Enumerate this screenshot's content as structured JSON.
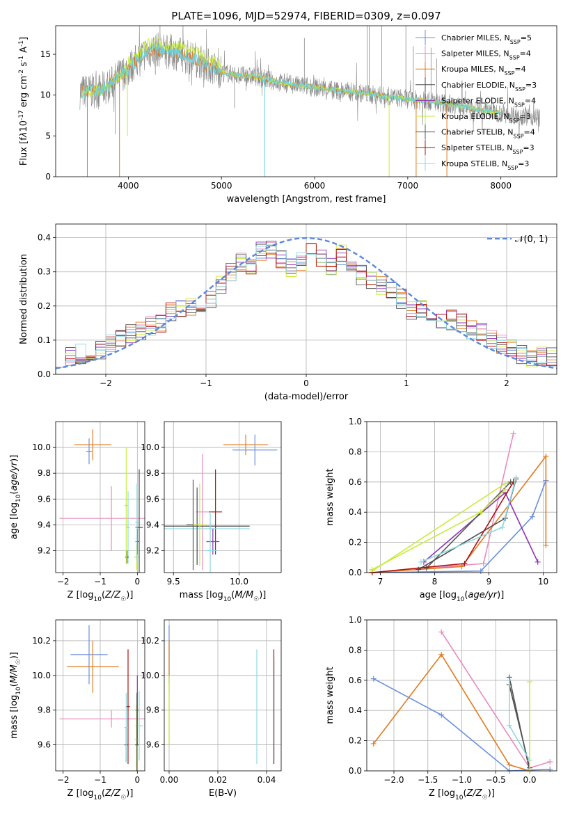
{
  "figure": {
    "title": "PLATE=1096, MJD=52974, FIBERID=0309, z=0.097"
  },
  "series_colors": [
    "#6a8fdb",
    "#e88bc0",
    "#e07b1f",
    "#4d4d4d",
    "#8e30b8",
    "#c8ec3a",
    "#555555",
    "#b01010",
    "#8ed8e0"
  ],
  "legend": [
    "Chabrier MILES, N<sub>SSP</sub>=5",
    "Salpeter MILES, N<sub>SSP</sub>=4",
    "Kroupa MILES, N<sub>SSP</sub>=4",
    "Chabrier ELODIE, N<sub>SSP</sub>=3",
    "Salpeter ELODIE, N<sub>SSP</sub>=4",
    "Kroupa ELODIE, N<sub>SSP</sub>=3",
    "Chabrier STELIB, N<sub>SSP</sub>=4",
    "Salpeter STELIB, N<sub>SSP</sub>=3",
    "Kroupa STELIB, N<sub>SSP</sub>=3"
  ],
  "chart_data": [
    {
      "id": "spectrum",
      "type": "line",
      "xlabel": "wavelength [Angstrom, rest frame]",
      "ylabel": "Flux [f<tspan font-style='italic'>λ</tspan>10<tspan baseline-shift='super' font-size='9'>-17</tspan> erg cm<tspan baseline-shift='super' font-size='9'>-2</tspan> s<tspan baseline-shift='super' font-size='9'>-1</tspan> A<tspan baseline-shift='super' font-size='9'>-1</tspan>]",
      "xlim": [
        3220,
        8600
      ],
      "ylim": [
        0,
        18.5
      ],
      "xticks": [
        4000,
        5000,
        6000,
        7000,
        8000
      ],
      "yticks": [
        0,
        5,
        10,
        15
      ],
      "continuum": [
        [
          3500,
          10.4
        ],
        [
          3600,
          10.5
        ],
        [
          3700,
          10.6
        ],
        [
          3800,
          11.2
        ],
        [
          3900,
          12.3
        ],
        [
          4000,
          13.2
        ],
        [
          4100,
          14.3
        ],
        [
          4200,
          15.3
        ],
        [
          4300,
          15.6
        ],
        [
          4400,
          15.4
        ],
        [
          4500,
          15.2
        ],
        [
          4600,
          14.8
        ],
        [
          4700,
          14.5
        ],
        [
          4800,
          14.0
        ],
        [
          4900,
          13.4
        ],
        [
          5000,
          12.8
        ],
        [
          5200,
          12.4
        ],
        [
          5400,
          12.2
        ],
        [
          5600,
          11.6
        ],
        [
          5800,
          11.2
        ],
        [
          6000,
          11.0
        ],
        [
          6200,
          10.6
        ],
        [
          6400,
          10.4
        ],
        [
          6600,
          10.1
        ],
        [
          6800,
          9.8
        ],
        [
          7000,
          9.5
        ],
        [
          7200,
          9.3
        ],
        [
          7400,
          9.0
        ],
        [
          7600,
          8.6
        ],
        [
          7800,
          8.1
        ],
        [
          8000,
          7.8
        ],
        [
          8200,
          7.5
        ],
        [
          8400,
          7.3
        ]
      ],
      "spikes": [
        [
          3860,
          5.2
        ],
        [
          4290,
          12.5
        ],
        [
          4340,
          18.5
        ],
        [
          5140,
          8.4
        ],
        [
          5890,
          17.0
        ],
        [
          6565,
          18.5
        ],
        [
          6587,
          18.5
        ],
        [
          6720,
          18.5
        ],
        [
          6980,
          18.5
        ],
        [
          7060,
          16.0
        ],
        [
          7250,
          15.8
        ],
        [
          7310,
          14.5
        ],
        [
          7620,
          10.5
        ],
        [
          7900,
          9.8
        ]
      ]
    },
    {
      "id": "residuals",
      "type": "histogram",
      "xlabel": "(data-model)/error",
      "ylabel": "Normed distribution",
      "xlim": [
        -2.5,
        2.5
      ],
      "ylim": [
        0,
        0.44
      ],
      "xticks": [
        -2,
        -1,
        0,
        1,
        2
      ],
      "yticks": [
        0.0,
        0.1,
        0.2,
        0.3,
        0.4
      ],
      "bin_width": 0.1,
      "base_profile": [
        0.05,
        0.055,
        0.06,
        0.065,
        0.07,
        0.09,
        0.1,
        0.12,
        0.13,
        0.14,
        0.15,
        0.18,
        0.19,
        0.2,
        0.2,
        0.22,
        0.26,
        0.3,
        0.33,
        0.32,
        0.36,
        0.37,
        0.34,
        0.31,
        0.33,
        0.37,
        0.34,
        0.32,
        0.35,
        0.31,
        0.29,
        0.27,
        0.26,
        0.25,
        0.22,
        0.19,
        0.19,
        0.17,
        0.16,
        0.16,
        0.15,
        0.13,
        0.12,
        0.1,
        0.09,
        0.08,
        0.06,
        0.05,
        0.05,
        0.05
      ],
      "gaussian_label": "𝒩(0, 1)"
    },
    {
      "id": "age_vs_Z",
      "type": "errorbar",
      "xlabel": "Z [log<tspan baseline-shift='sub' font-size='9'>10</tspan>(<tspan font-style='italic'>Z/Z</tspan><tspan baseline-shift='sub' font-size='9'>☉</tspan>)]",
      "ylabel": "age  [log<tspan baseline-shift='sub' font-size='9'>10</tspan>(<tspan font-style='italic'>age/yr</tspan>)]",
      "xlim": [
        -2.2,
        0.2
      ],
      "ylim": [
        9.03,
        10.2
      ],
      "xticks": [
        -2,
        -1,
        0
      ],
      "yticks": [
        9.2,
        9.4,
        9.6,
        9.8,
        10.0
      ],
      "points": [
        [
          -1.3,
          9.97,
          0.08,
          0.1,
          0
        ],
        [
          -1.2,
          10.02,
          0.5,
          0.12,
          2
        ],
        [
          -0.7,
          9.45,
          1.4,
          0.25,
          1
        ],
        [
          -0.25,
          9.38,
          0.05,
          0.28,
          8
        ],
        [
          0,
          9.27,
          0.05,
          0.1,
          4
        ],
        [
          -0.28,
          9.15,
          0.05,
          0.05,
          6
        ],
        [
          -0.02,
          9.15,
          0.08,
          0.1,
          5
        ],
        [
          0.05,
          9.38,
          0.1,
          0.45,
          3
        ],
        [
          -0.3,
          9.55,
          0.05,
          0.45,
          5
        ],
        [
          -0.01,
          9.42,
          0.05,
          0.3,
          8
        ]
      ]
    },
    {
      "id": "age_vs_mass",
      "type": "errorbar",
      "xlabel": "mass [log<tspan baseline-shift='sub' font-size='9'>10</tspan>(<tspan font-style='italic'>M/M</tspan><tspan baseline-shift='sub' font-size='9'>☉</tspan>)]",
      "ylabel": "",
      "xlim": [
        9.43,
        10.32
      ],
      "ylim": [
        9.03,
        10.2
      ],
      "xticks": [
        9.5,
        10.0
      ],
      "yticks": [
        9.2,
        9.4,
        9.6,
        9.8,
        10.0
      ],
      "points": [
        [
          10.12,
          9.98,
          0.17,
          0.12,
          0
        ],
        [
          10.05,
          10.02,
          0.17,
          0.08,
          2
        ],
        [
          9.72,
          9.5,
          0.05,
          0.45,
          1
        ],
        [
          9.82,
          9.5,
          0.05,
          0.33,
          7
        ],
        [
          9.68,
          9.37,
          0.4,
          0.28,
          8
        ],
        [
          9.68,
          9.39,
          0.4,
          0.3,
          3
        ],
        [
          9.8,
          9.27,
          0.05,
          0.1,
          4
        ],
        [
          9.65,
          9.4,
          0.05,
          0.35,
          6
        ],
        [
          9.7,
          9.4,
          0.05,
          0.32,
          5
        ],
        [
          9.78,
          9.2,
          0.05,
          0.3,
          8
        ]
      ]
    },
    {
      "id": "mass_weight_vs_age",
      "type": "line",
      "xlabel": "age  [log<tspan baseline-shift='sub' font-size='9'>10</tspan>(<tspan font-style='italic'>age/yr</tspan>)]",
      "ylabel": "mass weight",
      "xlim": [
        6.75,
        10.25
      ],
      "ylim": [
        0,
        1.0
      ],
      "xticks": [
        7,
        8,
        9,
        10
      ],
      "yticks": [
        0.0,
        0.2,
        0.4,
        0.6,
        0.8,
        1.0
      ],
      "series": [
        {
          "c": 0,
          "pts": [
            [
              6.85,
              0.0
            ],
            [
              8.85,
              0.01
            ],
            [
              9.8,
              0.37
            ],
            [
              10.05,
              0.61
            ]
          ]
        },
        {
          "c": 1,
          "pts": [
            [
              6.85,
              0.0
            ],
            [
              8.9,
              0.06
            ],
            [
              9.45,
              0.92
            ]
          ]
        },
        {
          "c": 2,
          "pts": [
            [
              6.85,
              0.0
            ],
            [
              8.5,
              0.04
            ],
            [
              10.05,
              0.77
            ],
            [
              10.05,
              0.18
            ]
          ]
        },
        {
          "c": 3,
          "pts": [
            [
              7.7,
              0.02
            ],
            [
              9.3,
              0.36
            ],
            [
              9.5,
              0.62
            ]
          ]
        },
        {
          "c": 4,
          "pts": [
            [
              7.8,
              0.07
            ],
            [
              9.3,
              0.53
            ],
            [
              9.9,
              0.07
            ]
          ]
        },
        {
          "c": 5,
          "pts": [
            [
              6.85,
              0.01
            ],
            [
              9.3,
              0.59
            ],
            [
              9.45,
              0.6
            ]
          ]
        },
        {
          "c": 6,
          "pts": [
            [
              7.85,
              0.03
            ],
            [
              9.4,
              0.6
            ]
          ]
        },
        {
          "c": 7,
          "pts": [
            [
              6.85,
              0.0
            ],
            [
              8.55,
              0.06
            ],
            [
              9.45,
              0.6
            ]
          ]
        },
        {
          "c": 8,
          "pts": [
            [
              7.75,
              0.07
            ],
            [
              9.25,
              0.3
            ],
            [
              9.5,
              0.63
            ]
          ]
        },
        {
          "c": 5,
          "pts": [
            [
              6.85,
              0.02
            ],
            [
              8.85,
              0.4
            ],
            [
              9.3,
              0.55
            ]
          ]
        }
      ]
    },
    {
      "id": "mass_vs_Z",
      "type": "errorbar",
      "xlabel": "Z [log<tspan baseline-shift='sub' font-size='9'>10</tspan>(<tspan font-style='italic'>Z/Z</tspan><tspan baseline-shift='sub' font-size='9'>☉</tspan>)]",
      "ylabel": "mass [log<tspan baseline-shift='sub' font-size='9'>10</tspan>(<tspan font-style='italic'>M/M</tspan><tspan baseline-shift='sub' font-size='9'>☉</tspan>)]",
      "xlim": [
        -2.2,
        0.2
      ],
      "ylim": [
        9.45,
        10.32
      ],
      "xticks": [
        -2,
        -1,
        0
      ],
      "yticks": [
        9.6,
        9.8,
        10.0,
        10.2
      ],
      "points": [
        [
          -1.3,
          10.12,
          0.5,
          0.17,
          0
        ],
        [
          -1.2,
          10.05,
          0.7,
          0.15,
          2
        ],
        [
          -0.7,
          9.75,
          1.4,
          0.05,
          1
        ],
        [
          -0.25,
          9.82,
          0.05,
          0.33,
          7
        ],
        [
          0,
          9.8,
          0.05,
          0.2,
          4
        ],
        [
          -0.3,
          9.6,
          0.05,
          0.1,
          6
        ],
        [
          -0.02,
          9.63,
          0.05,
          0.2,
          5
        ],
        [
          0.05,
          9.71,
          0.1,
          0.2,
          8
        ],
        [
          -0.3,
          9.7,
          0.05,
          0.2,
          8
        ],
        [
          -0.01,
          9.6,
          0.05,
          0.3,
          3
        ]
      ]
    },
    {
      "id": "mass_vs_ebv",
      "type": "errorbar",
      "xlabel": "E(B-V)",
      "ylabel": "",
      "xlim": [
        -0.002,
        0.046
      ],
      "ylim": [
        9.45,
        10.32
      ],
      "xticks": [
        0.0,
        0.02,
        0.04
      ],
      "yticks": [
        9.6,
        9.8,
        10.0,
        10.2
      ],
      "points": [
        [
          0.0,
          10.12,
          0,
          0.17,
          0
        ],
        [
          0.0,
          10.05,
          0,
          0.15,
          2
        ],
        [
          0.0,
          9.75,
          0,
          0.15,
          1
        ],
        [
          0.0,
          9.8,
          0,
          0.2,
          5
        ],
        [
          0.043,
          9.82,
          0,
          0.33,
          7
        ],
        [
          0.043,
          9.8,
          0,
          0.3,
          6
        ],
        [
          0.036,
          9.82,
          0,
          0.33,
          8
        ]
      ]
    },
    {
      "id": "mass_weight_vs_Z",
      "type": "line",
      "xlabel": "Z [log<tspan baseline-shift='sub' font-size='9'>10</tspan>(<tspan font-style='italic'>Z/Z</tspan><tspan baseline-shift='sub' font-size='9'>☉</tspan>)]",
      "ylabel": "mass weight",
      "xlim": [
        -2.4,
        0.4
      ],
      "ylim": [
        0,
        1.0
      ],
      "xticks": [
        -2.0,
        -1.5,
        -1.0,
        -0.5,
        0.0
      ],
      "yticks": [
        0.0,
        0.2,
        0.4,
        0.6,
        0.8,
        1.0
      ],
      "series": [
        {
          "c": 0,
          "pts": [
            [
              -2.3,
              0.61
            ],
            [
              -1.3,
              0.37
            ],
            [
              -0.3,
              0.0
            ],
            [
              0.3,
              0.01
            ]
          ]
        },
        {
          "c": 1,
          "pts": [
            [
              -1.3,
              0.92
            ],
            [
              0.0,
              0.02
            ],
            [
              0.3,
              0.06
            ]
          ]
        },
        {
          "c": 2,
          "pts": [
            [
              -2.3,
              0.18
            ],
            [
              -1.3,
              0.77
            ],
            [
              -0.3,
              0.04
            ],
            [
              0.0,
              0.0
            ]
          ]
        },
        {
          "c": 3,
          "pts": [
            [
              -0.3,
              0.57
            ],
            [
              0.0,
              0.02
            ]
          ]
        },
        {
          "c": 6,
          "pts": [
            [
              -0.3,
              0.62
            ],
            [
              0.0,
              0.0
            ]
          ]
        },
        {
          "c": 8,
          "pts": [
            [
              -0.3,
              0.6
            ],
            [
              -0.3,
              0.3
            ],
            [
              0.0,
              0.07
            ]
          ]
        },
        {
          "c": 5,
          "pts": [
            [
              0.0,
              0.59
            ],
            [
              0.0,
              0.0
            ]
          ]
        }
      ]
    }
  ]
}
